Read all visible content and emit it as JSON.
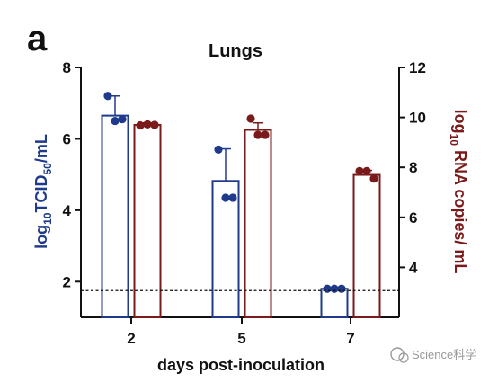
{
  "panel_label": "a",
  "watermark": "Science科学",
  "colors": {
    "left_series": "#1f3a8a",
    "right_series": "#7a1a1a",
    "axis": "#111111",
    "lod_line": "#111111"
  },
  "chart_data": {
    "type": "bar",
    "title": "Lungs",
    "xlabel": "days post-inoculation",
    "categories": [
      "2",
      "5",
      "7"
    ],
    "y_left": {
      "label_main": "log",
      "label_sub1": "10",
      "label_mid": "TCID",
      "label_sub2": "50",
      "label_tail": "/mL",
      "range": [
        1,
        8
      ],
      "ticks": [
        2,
        4,
        6,
        8
      ]
    },
    "y_right": {
      "label_main": "log",
      "label_sub": "10",
      "label_tail": " RNA copies/ mL",
      "range": [
        2,
        12
      ],
      "ticks": [
        4,
        6,
        8,
        10,
        12
      ]
    },
    "limit_of_detection": {
      "axis": "left",
      "value": 1.75,
      "style": "dashed"
    },
    "series": [
      {
        "axis": "left",
        "bar_style": "open",
        "color_key": "left_series",
        "means": [
          6.65,
          4.82,
          1.8
        ],
        "sd": [
          0.55,
          0.9,
          0
        ],
        "points": [
          [
            7.2,
            6.5,
            6.55
          ],
          [
            5.7,
            4.35,
            4.35
          ],
          [
            1.8,
            1.8,
            1.8
          ]
        ]
      },
      {
        "axis": "right",
        "bar_style": "open",
        "color_key": "right_series",
        "means": [
          9.7,
          9.5,
          7.7
        ],
        "sd": [
          0.08,
          0.28,
          0.18
        ],
        "points": [
          [
            9.68,
            9.72,
            9.7
          ],
          [
            9.95,
            9.3,
            9.3
          ],
          [
            7.85,
            7.85,
            7.55
          ]
        ]
      }
    ]
  }
}
